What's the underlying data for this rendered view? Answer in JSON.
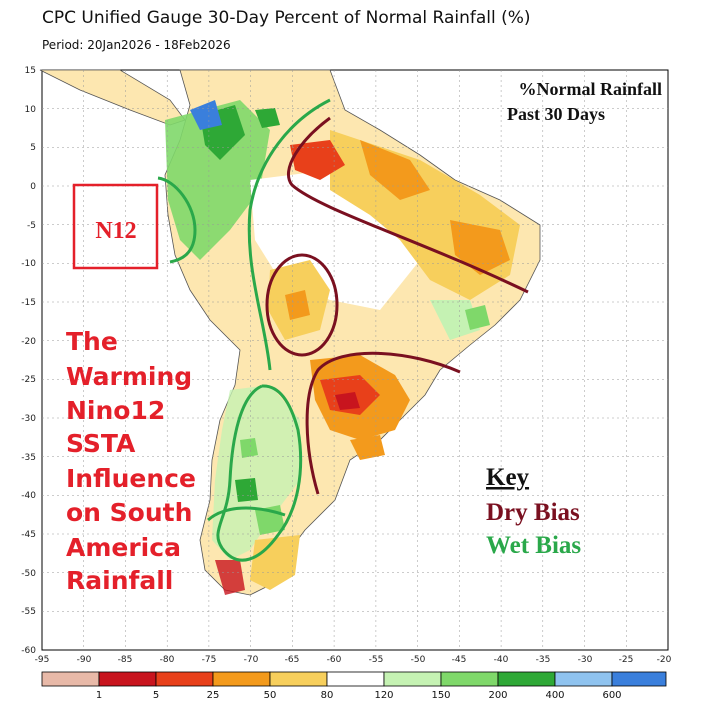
{
  "header": {
    "title": "CPC Unified Gauge 30-Day Percent of Normal Rainfall (%)",
    "period": "Period: 20Jan2026 - 18Feb2026"
  },
  "map": {
    "inset_title_line1": "%Normal Rainfall",
    "inset_title_line2": "Past 30 Days",
    "box_label": "N12",
    "annotation_lines": [
      "The",
      "Warming",
      "Nino12",
      "SSTA",
      "Influence",
      "on South",
      "America",
      "Rainfall"
    ],
    "key_title": "Key",
    "key_dry": "Dry Bias",
    "key_wet": "Wet Bias",
    "lat_ticks": [
      "15",
      "10",
      "5",
      "0",
      "-5",
      "-10",
      "-15",
      "-20",
      "-25",
      "-30",
      "-35",
      "-40",
      "-45",
      "-50",
      "-55",
      "-60"
    ],
    "lon_ticks": [
      "-95",
      "-90",
      "-85",
      "-80",
      "-75",
      "-70",
      "-65",
      "-60",
      "-55",
      "-50",
      "-45",
      "-40",
      "-35",
      "-30",
      "-25",
      "-20"
    ]
  },
  "legend": {
    "labels": [
      "1",
      "5",
      "25",
      "50",
      "80",
      "120",
      "150",
      "200",
      "400",
      "600"
    ],
    "colors": [
      "#e8b9a8",
      "#c8141e",
      "#e8401a",
      "#f39a1c",
      "#f7cf5c",
      "#ffffff",
      "#c5f2b3",
      "#7fd86a",
      "#2ea836",
      "#8fc3ef",
      "#3a7fdc"
    ]
  },
  "colors": {
    "dry": "#7a1020",
    "wet": "#2aa84a",
    "annotation": "#e4202a"
  }
}
